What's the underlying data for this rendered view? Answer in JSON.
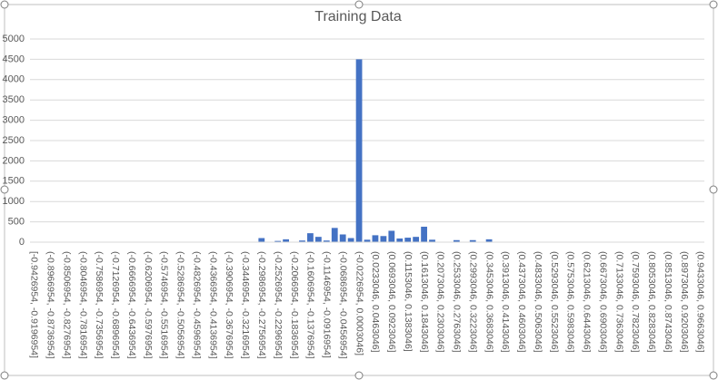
{
  "chart_data": {
    "type": "bar",
    "title": "Training Data",
    "categories": [
      "[-0.9426954, -0.9196954]",
      null,
      "(-0.8966954, -0.8736954]",
      null,
      "(-0.8506954, -0.8276954]",
      null,
      "(-0.8046954, -0.7816954]",
      null,
      "(-0.7586954, -0.7356954]",
      null,
      "(-0.7126954, -0.6896954]",
      null,
      "(-0.6666954, -0.6436954]",
      null,
      "(-0.6206954, -0.5976954]",
      null,
      "(-0.5746954, -0.5516954]",
      null,
      "(-0.5286954, -0.5056954]",
      null,
      "(-0.4826954, -0.4596954]",
      null,
      "(-0.4366954, -0.4136954]",
      null,
      "(-0.3906954, -0.3676954]",
      null,
      "(-0.3446954, -0.3216954]",
      null,
      "(-0.2986954, -0.2756954]",
      null,
      "(-0.2526954, -0.2296954]",
      null,
      "(-0.2066954, -0.1836954]",
      null,
      "(-0.1606954, -0.1376954]",
      null,
      "(-0.1146954, -0.0916954]",
      null,
      "(-0.0686954, -0.0456954]",
      null,
      "(-0.0226954, 0.0003046]",
      null,
      "(0.0233046, 0.0463046]",
      null,
      "(0.0693046, 0.0923046]",
      null,
      "(0.1153046, 0.1383046]",
      null,
      "(0.1613046, 0.1843046]",
      null,
      "(0.2073046, 0.2303046]",
      null,
      "(0.2533046, 0.2763046]",
      null,
      "(0.2993046, 0.3223046]",
      null,
      "(0.3453046, 0.3683046]",
      null,
      "(0.3913046, 0.4143046]",
      null,
      "(0.4373046, 0.4603046]",
      null,
      "(0.4833046, 0.5063046]",
      null,
      "(0.5293046, 0.5523046]",
      null,
      "(0.5753046, 0.5983046]",
      null,
      "(0.6213046, 0.6443046]",
      null,
      "(0.6673046, 0.6903046]",
      null,
      "(0.7133046, 0.7363046]",
      null,
      "(0.7593046, 0.7823046]",
      null,
      "(0.8053046, 0.8283046]",
      null,
      "(0.8513046, 0.8743046]",
      null,
      "(0.8973046, 0.9203046]",
      null,
      "(0.9433046, 0.9663046]"
    ],
    "values": [
      0,
      0,
      0,
      0,
      0,
      0,
      0,
      0,
      0,
      0,
      0,
      0,
      0,
      0,
      0,
      0,
      0,
      0,
      0,
      0,
      0,
      0,
      0,
      0,
      0,
      0,
      0,
      0,
      100,
      0,
      30,
      70,
      0,
      40,
      220,
      130,
      40,
      350,
      190,
      100,
      4500,
      60,
      170,
      150,
      280,
      90,
      110,
      130,
      380,
      60,
      0,
      0,
      50,
      0,
      50,
      0,
      70,
      0,
      0,
      0,
      0,
      0,
      0,
      0,
      0,
      0,
      0,
      0,
      0,
      0,
      0,
      0,
      0,
      0,
      0,
      0,
      0,
      0,
      0,
      0,
      0,
      0,
      0
    ],
    "color": "#4472c4",
    "ylim": [
      0,
      5000
    ],
    "yticks": [
      0,
      500,
      1000,
      1500,
      2000,
      2500,
      3000,
      3500,
      4000,
      4500,
      5000
    ],
    "grid": true
  }
}
